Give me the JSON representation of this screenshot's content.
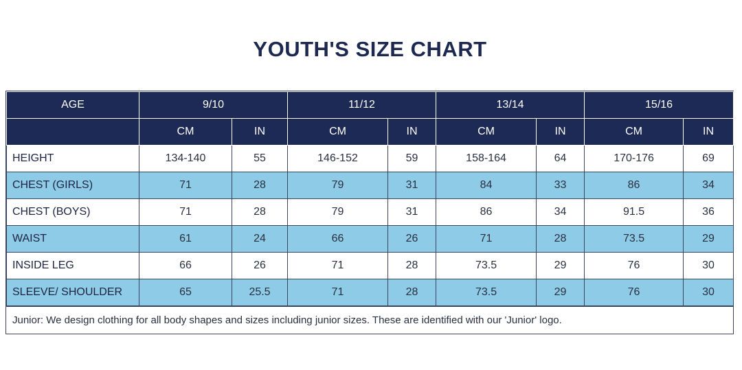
{
  "title": "YOUTH'S SIZE CHART",
  "header": {
    "age_label": "AGE",
    "ages": [
      "9/10",
      "11/12",
      "13/14",
      "15/16"
    ],
    "unit_cm": "CM",
    "unit_in": "IN"
  },
  "rows": [
    {
      "label": "HEIGHT",
      "values": [
        "134-140",
        "55",
        "146-152",
        "59",
        "158-164",
        "64",
        "170-176",
        "69"
      ]
    },
    {
      "label": "CHEST (GIRLS)",
      "values": [
        "71",
        "28",
        "79",
        "31",
        "84",
        "33",
        "86",
        "34"
      ]
    },
    {
      "label": "CHEST (BOYS)",
      "values": [
        "71",
        "28",
        "79",
        "31",
        "86",
        "34",
        "91.5",
        "36"
      ]
    },
    {
      "label": "WAIST",
      "values": [
        "61",
        "24",
        "66",
        "26",
        "71",
        "28",
        "73.5",
        "29"
      ]
    },
    {
      "label": "INSIDE LEG",
      "values": [
        "66",
        "26",
        "71",
        "28",
        "73.5",
        "29",
        "76",
        "30"
      ]
    },
    {
      "label": "SLEEVE/ SHOULDER",
      "values": [
        "65",
        "25.5",
        "71",
        "28",
        "73.5",
        "29",
        "76",
        "30"
      ]
    }
  ],
  "note": "Junior: We design clothing for all body shapes and sizes including junior sizes. These are identified with our 'Junior' logo.",
  "colors": {
    "header_bg": "#1c2a55",
    "alt_row_bg": "#8ecbe7",
    "title": "#1d2850"
  }
}
